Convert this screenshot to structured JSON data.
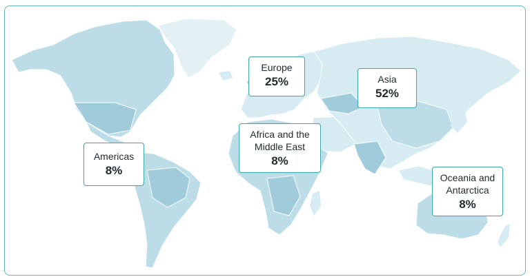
{
  "colors": {
    "frame_border": "#5fb3b3",
    "callout_border": "#3aa6a6",
    "land_light": "#d6ecf2",
    "land_mid": "#bcdde8",
    "land_dark": "#9fcbdb",
    "greenland": "#e3f1f5"
  },
  "regions": [
    {
      "id": "americas",
      "name": "Americas",
      "value": "8%"
    },
    {
      "id": "europe",
      "name": "Europe",
      "value": "25%"
    },
    {
      "id": "asia",
      "name": "Asia",
      "value": "52%"
    },
    {
      "id": "africa",
      "name": "Africa and the Middle East",
      "value": "8%"
    },
    {
      "id": "oceania",
      "name": "Oceania and Antarctica",
      "value": "8%"
    }
  ]
}
